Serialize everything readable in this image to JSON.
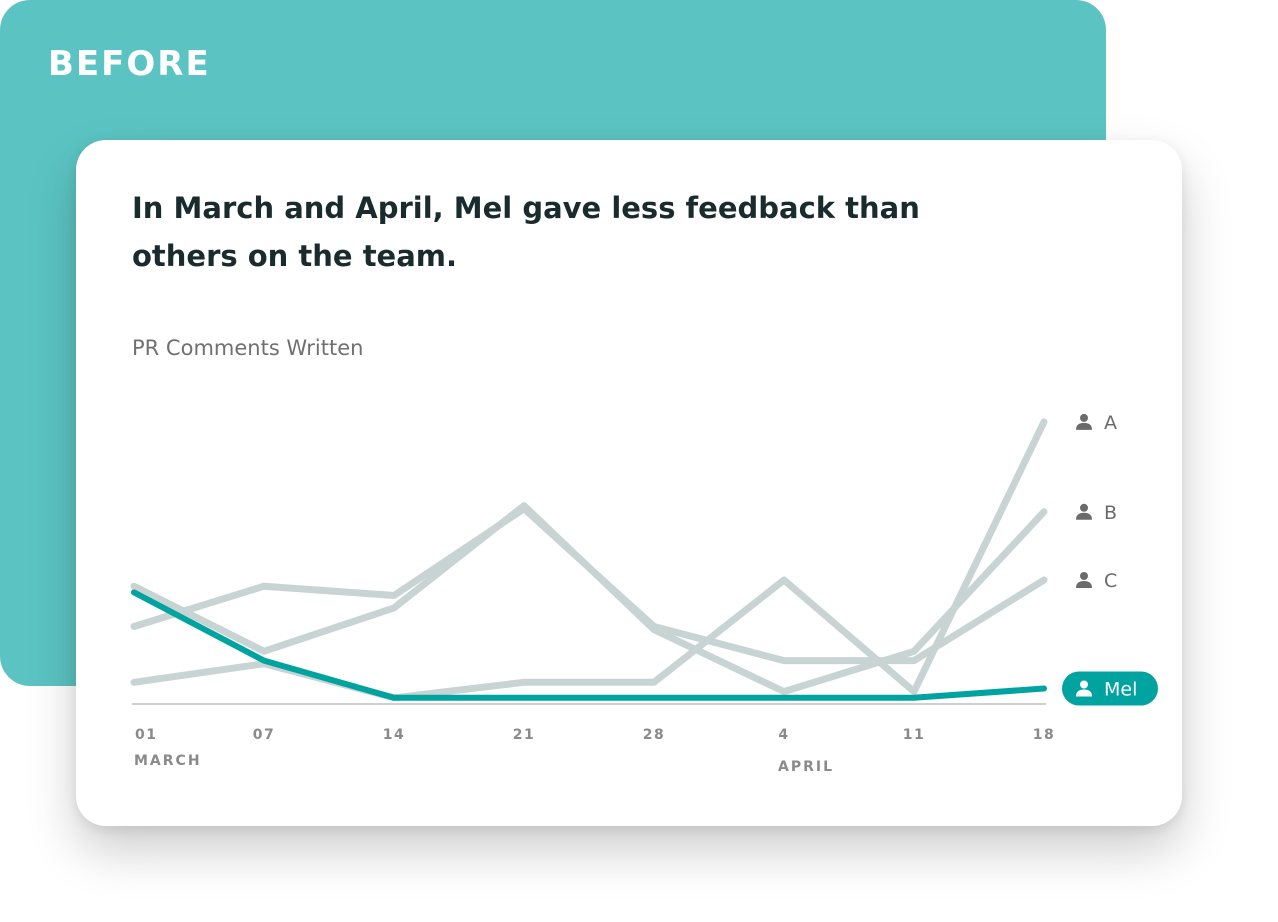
{
  "panel": {
    "label": "BEFORE"
  },
  "card": {
    "headline": "In March and April, Mel gave less feedback than others on the team."
  },
  "colors": {
    "panel_bg": "#5bc4c3",
    "highlight": "#00a39f",
    "muted_series": "#c8d4d3",
    "axis": "#cfcfcf"
  },
  "chart_data": {
    "type": "line",
    "title": "PR Comments Written",
    "x": [
      "01",
      "07",
      "14",
      "21",
      "28",
      "4",
      "11",
      "18"
    ],
    "month_labels": [
      {
        "label": "MARCH",
        "at": "01"
      },
      {
        "label": "APRIL",
        "at": "4"
      }
    ],
    "ylim": [
      0,
      10
    ],
    "grid": false,
    "series": [
      {
        "name": "A",
        "values": [
          0.7,
          1.3,
          0.2,
          0.7,
          0.7,
          4.0,
          0.4,
          9.1
        ],
        "color": "#c8d4d3",
        "icon": "user-icon"
      },
      {
        "name": "B",
        "values": [
          3.8,
          1.7,
          3.1,
          6.4,
          2.4,
          0.4,
          1.7,
          6.2
        ],
        "color": "#c8d4d3",
        "icon": "user-icon"
      },
      {
        "name": "C",
        "values": [
          2.5,
          3.8,
          3.5,
          6.3,
          2.5,
          1.4,
          1.4,
          4.0
        ],
        "color": "#c8d4d3",
        "icon": "user-icon"
      },
      {
        "name": "Mel",
        "values": [
          3.6,
          1.4,
          0.2,
          0.2,
          0.2,
          0.2,
          0.2,
          0.5
        ],
        "color": "#00a39f",
        "icon": "user-icon",
        "highlighted": true
      }
    ]
  }
}
